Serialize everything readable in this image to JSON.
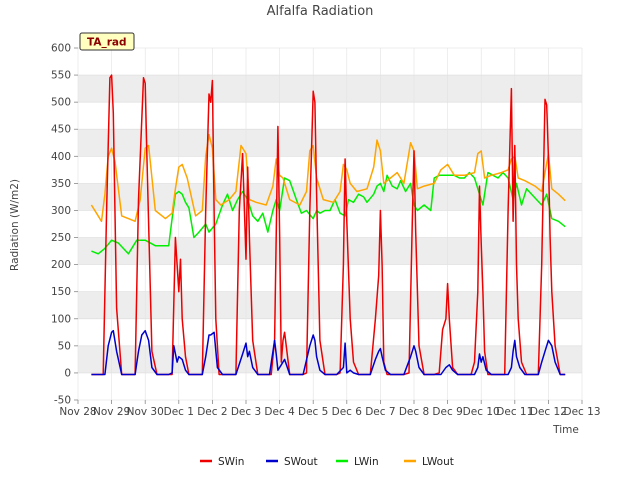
{
  "chart_data": {
    "type": "line",
    "title": "Alfalfa Radiation",
    "xlabel": "Time",
    "ylabel": "Radiation (W/m2)",
    "tag": "TA_rad",
    "ylim": [
      -50,
      600
    ],
    "yticks": [
      -50,
      0,
      50,
      100,
      150,
      200,
      250,
      300,
      350,
      400,
      450,
      500,
      550,
      600
    ],
    "xlim": [
      0,
      15
    ],
    "xticks": [
      {
        "x": 0,
        "label": "Nov 28"
      },
      {
        "x": 1,
        "label": "Nov 29"
      },
      {
        "x": 2,
        "label": "Nov 30"
      },
      {
        "x": 3,
        "label": "Dec 1"
      },
      {
        "x": 4,
        "label": "Dec 2"
      },
      {
        "x": 5,
        "label": "Dec 3"
      },
      {
        "x": 6,
        "label": "Dec 4"
      },
      {
        "x": 7,
        "label": "Dec 5"
      },
      {
        "x": 8,
        "label": "Dec 6"
      },
      {
        "x": 9,
        "label": "Dec 7"
      },
      {
        "x": 10,
        "label": "Dec 8"
      },
      {
        "x": 11,
        "label": "Dec 9"
      },
      {
        "x": 12,
        "label": "Dec 10"
      },
      {
        "x": 13,
        "label": "Dec 11"
      },
      {
        "x": 14,
        "label": "Dec 12"
      },
      {
        "x": 15,
        "label": "Dec 13"
      }
    ],
    "series": [
      {
        "name": "SWin",
        "color": "#ee0000",
        "x": [
          0.4,
          0.75,
          0.85,
          0.95,
          1.0,
          1.05,
          1.15,
          1.3,
          1.7,
          1.8,
          1.95,
          2.0,
          2.05,
          2.2,
          2.35,
          2.6,
          2.8,
          2.9,
          2.95,
          3.0,
          3.05,
          3.1,
          3.2,
          3.3,
          3.7,
          3.8,
          3.9,
          3.95,
          4.0,
          4.05,
          4.1,
          4.2,
          4.35,
          4.7,
          4.8,
          4.9,
          5.0,
          5.05,
          5.1,
          5.2,
          5.35,
          5.6,
          5.75,
          5.85,
          5.95,
          6.0,
          6.05,
          6.1,
          6.15,
          6.3,
          6.4,
          6.7,
          6.8,
          6.9,
          7.0,
          7.05,
          7.1,
          7.2,
          7.35,
          7.7,
          7.8,
          7.9,
          7.95,
          8.0,
          8.1,
          8.2,
          8.35,
          8.7,
          8.85,
          8.95,
          9.0,
          9.05,
          9.1,
          9.2,
          9.35,
          9.7,
          9.85,
          9.95,
          10.0,
          10.05,
          10.15,
          10.3,
          10.6,
          10.75,
          10.85,
          10.95,
          11.0,
          11.05,
          11.15,
          11.3,
          11.7,
          11.8,
          11.9,
          11.95,
          12.0,
          12.05,
          12.1,
          12.2,
          12.35,
          12.7,
          12.8,
          12.9,
          12.95,
          13.0,
          13.05,
          13.1,
          13.2,
          13.35,
          13.7,
          13.8,
          13.9,
          13.95,
          14.0,
          14.05,
          14.1,
          14.2,
          14.35,
          14.5
        ],
        "values": [
          -3,
          -3,
          300,
          545,
          550,
          480,
          120,
          -3,
          -3,
          320,
          545,
          535,
          400,
          40,
          -3,
          -3,
          -3,
          250,
          200,
          150,
          210,
          100,
          30,
          -3,
          -3,
          300,
          515,
          500,
          540,
          300,
          100,
          -3,
          -3,
          -3,
          300,
          405,
          210,
          380,
          250,
          60,
          -3,
          -3,
          -3,
          60,
          455,
          260,
          20,
          60,
          75,
          -3,
          -3,
          -3,
          0,
          300,
          520,
          500,
          330,
          60,
          -3,
          -3,
          0,
          200,
          395,
          280,
          100,
          20,
          -3,
          -3,
          100,
          180,
          300,
          200,
          20,
          -3,
          -3,
          -3,
          0,
          280,
          410,
          260,
          50,
          -3,
          -3,
          0,
          80,
          100,
          165,
          100,
          10,
          -3,
          -3,
          20,
          150,
          345,
          240,
          150,
          40,
          -3,
          -3,
          -3,
          300,
          525,
          280,
          420,
          200,
          100,
          20,
          -3,
          -3,
          200,
          505,
          495,
          400,
          250,
          150,
          50,
          -3,
          -3
        ]
      },
      {
        "name": "SWout",
        "color": "#0000cc",
        "x": [
          0.4,
          0.8,
          0.9,
          1.0,
          1.05,
          1.15,
          1.3,
          1.7,
          1.8,
          1.9,
          2.0,
          2.1,
          2.2,
          2.35,
          2.7,
          2.8,
          2.85,
          2.95,
          3.0,
          3.1,
          3.2,
          3.3,
          3.7,
          3.8,
          3.9,
          3.95,
          4.05,
          4.15,
          4.3,
          4.7,
          4.9,
          5.0,
          5.05,
          5.1,
          5.2,
          5.35,
          5.7,
          5.85,
          5.9,
          5.95,
          6.05,
          6.15,
          6.3,
          6.7,
          6.9,
          7.0,
          7.05,
          7.1,
          7.2,
          7.35,
          7.7,
          7.9,
          7.95,
          8.0,
          8.1,
          8.2,
          8.35,
          8.7,
          8.85,
          8.95,
          9.0,
          9.05,
          9.15,
          9.3,
          9.7,
          9.9,
          10.0,
          10.05,
          10.15,
          10.3,
          10.8,
          10.95,
          11.05,
          11.15,
          11.3,
          11.8,
          11.9,
          11.95,
          12.0,
          12.05,
          12.15,
          12.3,
          12.8,
          12.9,
          12.95,
          13.0,
          13.05,
          13.15,
          13.3,
          13.7,
          13.8,
          13.9,
          14.0,
          14.1,
          14.2,
          14.35,
          14.5
        ],
        "values": [
          -3,
          -3,
          50,
          75,
          78,
          40,
          -3,
          -3,
          40,
          70,
          78,
          60,
          10,
          -3,
          -3,
          0,
          50,
          20,
          30,
          25,
          5,
          -3,
          -3,
          30,
          70,
          70,
          75,
          10,
          -3,
          -3,
          35,
          55,
          30,
          40,
          10,
          -3,
          -3,
          60,
          35,
          5,
          15,
          25,
          -3,
          -3,
          50,
          70,
          60,
          30,
          5,
          -3,
          -3,
          10,
          55,
          0,
          5,
          0,
          -3,
          -3,
          25,
          40,
          45,
          30,
          5,
          -3,
          -3,
          30,
          50,
          40,
          10,
          -3,
          -3,
          10,
          15,
          5,
          -3,
          -3,
          10,
          35,
          20,
          30,
          5,
          -3,
          -3,
          10,
          40,
          60,
          30,
          10,
          -3,
          -3,
          20,
          40,
          60,
          50,
          20,
          -3,
          -3
        ]
      },
      {
        "name": "LWin",
        "color": "#00ee00",
        "x": [
          0.4,
          0.6,
          0.8,
          1.0,
          1.2,
          1.5,
          1.75,
          2.0,
          2.3,
          2.7,
          2.8,
          2.9,
          3.0,
          3.1,
          3.2,
          3.3,
          3.45,
          3.6,
          3.8,
          3.9,
          4.1,
          4.3,
          4.45,
          4.6,
          4.75,
          4.9,
          5.05,
          5.2,
          5.35,
          5.5,
          5.65,
          5.8,
          5.9,
          6.0,
          6.15,
          6.3,
          6.5,
          6.65,
          6.8,
          7.0,
          7.1,
          7.2,
          7.35,
          7.5,
          7.65,
          7.8,
          7.95,
          8.05,
          8.2,
          8.35,
          8.5,
          8.6,
          8.8,
          8.9,
          9.0,
          9.1,
          9.2,
          9.35,
          9.5,
          9.6,
          9.75,
          9.9,
          10.0,
          10.1,
          10.3,
          10.5,
          10.6,
          10.75,
          11.0,
          11.2,
          11.35,
          11.5,
          11.65,
          11.8,
          11.95,
          12.05,
          12.2,
          12.35,
          12.5,
          12.65,
          12.8,
          12.95,
          13.05,
          13.2,
          13.35,
          13.5,
          13.65,
          13.8,
          13.95,
          14.1,
          14.3,
          14.5
        ],
        "values": [
          225,
          220,
          230,
          245,
          240,
          220,
          245,
          245,
          235,
          235,
          285,
          330,
          335,
          330,
          315,
          305,
          250,
          260,
          275,
          260,
          275,
          310,
          330,
          300,
          320,
          335,
          320,
          290,
          280,
          295,
          260,
          300,
          320,
          300,
          360,
          355,
          320,
          295,
          300,
          285,
          300,
          295,
          300,
          300,
          320,
          295,
          290,
          320,
          315,
          330,
          325,
          315,
          330,
          345,
          350,
          335,
          365,
          345,
          340,
          355,
          335,
          350,
          310,
          300,
          310,
          300,
          360,
          365,
          365,
          365,
          360,
          360,
          370,
          360,
          330,
          310,
          370,
          365,
          360,
          370,
          360,
          320,
          350,
          310,
          340,
          330,
          320,
          310,
          330,
          285,
          280,
          270
        ]
      },
      {
        "name": "LWout",
        "color": "#ffa500",
        "x": [
          0.4,
          0.55,
          0.7,
          0.8,
          0.9,
          1.0,
          1.1,
          1.3,
          1.5,
          1.7,
          1.85,
          2.0,
          2.1,
          2.3,
          2.6,
          2.8,
          2.9,
          3.0,
          3.1,
          3.25,
          3.5,
          3.7,
          3.8,
          3.9,
          4.0,
          4.1,
          4.25,
          4.5,
          4.7,
          4.85,
          5.0,
          5.1,
          5.3,
          5.6,
          5.8,
          5.9,
          6.0,
          6.1,
          6.3,
          6.6,
          6.8,
          6.9,
          7.0,
          7.1,
          7.3,
          7.6,
          7.8,
          7.9,
          8.0,
          8.1,
          8.3,
          8.6,
          8.8,
          8.9,
          9.0,
          9.1,
          9.3,
          9.5,
          9.7,
          9.9,
          10.0,
          10.1,
          10.3,
          10.6,
          10.8,
          11.0,
          11.2,
          11.5,
          11.8,
          11.9,
          12.0,
          12.1,
          12.3,
          12.6,
          12.8,
          12.9,
          13.0,
          13.1,
          13.3,
          13.6,
          13.8,
          13.9,
          14.0,
          14.1,
          14.3,
          14.5
        ],
        "values": [
          310,
          295,
          280,
          330,
          400,
          415,
          390,
          290,
          285,
          280,
          320,
          415,
          420,
          300,
          285,
          295,
          340,
          380,
          385,
          360,
          290,
          300,
          400,
          440,
          415,
          320,
          310,
          320,
          335,
          420,
          405,
          320,
          315,
          310,
          345,
          395,
          365,
          360,
          320,
          310,
          335,
          410,
          420,
          360,
          320,
          315,
          335,
          385,
          375,
          350,
          335,
          340,
          380,
          430,
          410,
          350,
          360,
          370,
          350,
          425,
          410,
          340,
          345,
          350,
          375,
          385,
          365,
          365,
          370,
          405,
          410,
          360,
          365,
          370,
          375,
          395,
          400,
          360,
          355,
          345,
          335,
          370,
          405,
          340,
          330,
          318
        ]
      }
    ]
  }
}
